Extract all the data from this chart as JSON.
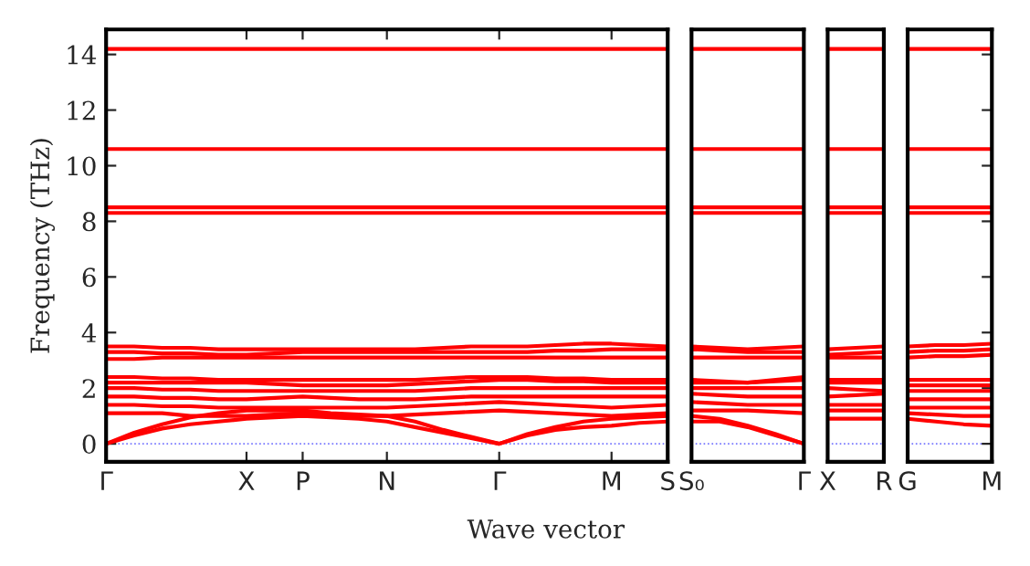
{
  "chart_data": [
    {
      "type": "line",
      "ylabel": "Frequency (THz)",
      "xlabel": "Wave vector",
      "categories": [
        "Γ",
        null,
        null,
        null,
        null,
        "X",
        null,
        "P",
        null,
        null,
        "N",
        null,
        null,
        null,
        "Γ",
        null,
        null,
        null,
        "M",
        null,
        "S"
      ],
      "ylim": [
        -0.65,
        14.9
      ],
      "yticks": [
        0,
        2,
        4,
        6,
        8,
        10,
        12,
        14
      ],
      "marker": "none",
      "line_style": "solid",
      "grid": false,
      "legend": false,
      "ref_lines": [
        {
          "axis": "y",
          "value": 0,
          "color": "#7777ff",
          "line_style": "dotted"
        }
      ],
      "series": [
        {
          "color": "#ff0000",
          "values": [
            0,
            0.3,
            0.55,
            0.7,
            0.8,
            0.9,
            0.95,
            1.0,
            0.95,
            0.9,
            0.8,
            0.6,
            0.4,
            0.2,
            0,
            0.3,
            0.5,
            0.6,
            0.65,
            0.75,
            0.8
          ]
        },
        {
          "color": "#ff0000",
          "values": [
            0,
            0.4,
            0.7,
            0.95,
            1.1,
            1.2,
            1.2,
            1.2,
            1.1,
            1.05,
            1.0,
            0.8,
            0.5,
            0.25,
            0,
            0.35,
            0.6,
            0.8,
            0.9,
            0.95,
            1.0
          ]
        },
        {
          "color": "#ff0000",
          "values": [
            1.1,
            1.1,
            1.1,
            1.0,
            1.0,
            1.0,
            1.05,
            1.1,
            1.05,
            1.0,
            1.0,
            1.05,
            1.1,
            1.15,
            1.2,
            1.15,
            1.1,
            1.05,
            1.0,
            1.05,
            1.1
          ]
        },
        {
          "color": "#ff0000",
          "values": [
            1.4,
            1.4,
            1.35,
            1.35,
            1.3,
            1.3,
            1.3,
            1.3,
            1.3,
            1.3,
            1.3,
            1.35,
            1.4,
            1.45,
            1.5,
            1.45,
            1.4,
            1.35,
            1.3,
            1.35,
            1.4
          ]
        },
        {
          "color": "#ff0000",
          "values": [
            1.7,
            1.7,
            1.65,
            1.65,
            1.6,
            1.6,
            1.65,
            1.7,
            1.65,
            1.6,
            1.6,
            1.6,
            1.65,
            1.7,
            1.7,
            1.7,
            1.7,
            1.7,
            1.7,
            1.7,
            1.7
          ]
        },
        {
          "color": "#ff0000",
          "values": [
            2.0,
            2.0,
            1.95,
            1.95,
            1.9,
            1.9,
            1.9,
            1.9,
            1.9,
            1.9,
            1.9,
            1.9,
            1.95,
            2.0,
            2.0,
            2.0,
            2.0,
            2.0,
            2.0,
            2.0,
            2.0
          ]
        },
        {
          "color": "#ff0000",
          "values": [
            2.2,
            2.2,
            2.2,
            2.2,
            2.2,
            2.2,
            2.15,
            2.1,
            2.1,
            2.1,
            2.1,
            2.15,
            2.2,
            2.25,
            2.3,
            2.3,
            2.25,
            2.25,
            2.2,
            2.2,
            2.2
          ]
        },
        {
          "color": "#ff0000",
          "values": [
            2.4,
            2.4,
            2.35,
            2.35,
            2.3,
            2.3,
            2.3,
            2.3,
            2.3,
            2.3,
            2.3,
            2.3,
            2.35,
            2.4,
            2.4,
            2.4,
            2.35,
            2.35,
            2.3,
            2.3,
            2.3
          ]
        },
        {
          "color": "#ff0000",
          "values": [
            3.05,
            3.05,
            3.1,
            3.1,
            3.1,
            3.1,
            3.1,
            3.1,
            3.1,
            3.1,
            3.1,
            3.1,
            3.1,
            3.1,
            3.1,
            3.1,
            3.1,
            3.1,
            3.1,
            3.1,
            3.1
          ]
        },
        {
          "color": "#ff0000",
          "values": [
            3.3,
            3.3,
            3.25,
            3.25,
            3.2,
            3.2,
            3.25,
            3.3,
            3.3,
            3.3,
            3.3,
            3.3,
            3.3,
            3.3,
            3.3,
            3.3,
            3.35,
            3.35,
            3.4,
            3.4,
            3.4
          ]
        },
        {
          "color": "#ff0000",
          "values": [
            3.5,
            3.5,
            3.45,
            3.45,
            3.4,
            3.4,
            3.4,
            3.4,
            3.4,
            3.4,
            3.4,
            3.4,
            3.45,
            3.5,
            3.5,
            3.5,
            3.55,
            3.6,
            3.6,
            3.55,
            3.5
          ]
        },
        {
          "color": "#ff0000",
          "values": [
            8.3,
            8.3,
            8.3,
            8.3,
            8.3,
            8.3,
            8.3,
            8.3,
            8.3,
            8.3,
            8.3,
            8.3,
            8.3,
            8.3,
            8.3,
            8.3,
            8.3,
            8.3,
            8.3,
            8.3,
            8.3
          ]
        },
        {
          "color": "#ff0000",
          "values": [
            8.5,
            8.5,
            8.5,
            8.5,
            8.5,
            8.5,
            8.5,
            8.5,
            8.5,
            8.5,
            8.5,
            8.5,
            8.5,
            8.5,
            8.5,
            8.5,
            8.5,
            8.5,
            8.5,
            8.5,
            8.5
          ]
        },
        {
          "color": "#ff0000",
          "values": [
            10.6,
            10.6,
            10.6,
            10.6,
            10.6,
            10.6,
            10.6,
            10.6,
            10.6,
            10.6,
            10.6,
            10.6,
            10.6,
            10.6,
            10.6,
            10.6,
            10.6,
            10.6,
            10.6,
            10.6,
            10.6
          ]
        },
        {
          "color": "#ff0000",
          "values": [
            14.2,
            14.2,
            14.2,
            14.2,
            14.2,
            14.2,
            14.2,
            14.2,
            14.2,
            14.2,
            14.2,
            14.2,
            14.2,
            14.2,
            14.2,
            14.2,
            14.2,
            14.2,
            14.2,
            14.2,
            14.2
          ]
        }
      ]
    },
    {
      "type": "line",
      "categories": [
        "S₀",
        null,
        null,
        null,
        "Γ"
      ],
      "tick_labels": "x",
      "ylim": [
        -0.65,
        14.9
      ],
      "yticks": [
        0,
        2,
        4,
        6,
        8,
        10,
        12,
        14
      ],
      "marker": "none",
      "line_style": "solid",
      "ref_lines": [
        {
          "axis": "y",
          "value": 0,
          "color": "#7777ff",
          "line_style": "dotted"
        }
      ],
      "series": [
        {
          "color": "#ff0000",
          "values": [
            0.8,
            0.8,
            0.6,
            0.3,
            0
          ]
        },
        {
          "color": "#ff0000",
          "values": [
            1.0,
            0.9,
            0.65,
            0.35,
            0
          ]
        },
        {
          "color": "#ff0000",
          "values": [
            1.2,
            1.2,
            1.2,
            1.15,
            1.1
          ]
        },
        {
          "color": "#ff0000",
          "values": [
            1.5,
            1.45,
            1.4,
            1.4,
            1.4
          ]
        },
        {
          "color": "#ff0000",
          "values": [
            1.8,
            1.75,
            1.7,
            1.7,
            1.7
          ]
        },
        {
          "color": "#ff0000",
          "values": [
            2.0,
            2.0,
            2.0,
            2.0,
            2.0
          ]
        },
        {
          "color": "#ff0000",
          "values": [
            2.2,
            2.2,
            2.2,
            2.25,
            2.3
          ]
        },
        {
          "color": "#ff0000",
          "values": [
            2.3,
            2.25,
            2.2,
            2.3,
            2.4
          ]
        },
        {
          "color": "#ff0000",
          "values": [
            3.1,
            3.1,
            3.1,
            3.1,
            3.1
          ]
        },
        {
          "color": "#ff0000",
          "values": [
            3.4,
            3.35,
            3.3,
            3.3,
            3.3
          ]
        },
        {
          "color": "#ff0000",
          "values": [
            3.5,
            3.45,
            3.4,
            3.45,
            3.5
          ]
        },
        {
          "color": "#ff0000",
          "values": [
            8.3,
            8.3,
            8.3,
            8.3,
            8.3
          ]
        },
        {
          "color": "#ff0000",
          "values": [
            8.5,
            8.5,
            8.5,
            8.5,
            8.5
          ]
        },
        {
          "color": "#ff0000",
          "values": [
            10.6,
            10.6,
            10.6,
            10.6,
            10.6
          ]
        },
        {
          "color": "#ff0000",
          "values": [
            14.2,
            14.2,
            14.2,
            14.2,
            14.2
          ]
        }
      ]
    },
    {
      "type": "line",
      "categories": [
        "X",
        null,
        "R"
      ],
      "tick_labels": "x",
      "ylim": [
        -0.65,
        14.9
      ],
      "yticks": [
        0,
        2,
        4,
        6,
        8,
        10,
        12,
        14
      ],
      "marker": "none",
      "line_style": "solid",
      "ref_lines": [
        {
          "axis": "y",
          "value": 0,
          "color": "#7777ff",
          "line_style": "dotted"
        }
      ],
      "series": [
        {
          "color": "#ff0000",
          "values": [
            0.9,
            0.9,
            0.9
          ]
        },
        {
          "color": "#ff0000",
          "values": [
            1.2,
            1.2,
            1.2
          ]
        },
        {
          "color": "#ff0000",
          "values": [
            1.4,
            1.4,
            1.4
          ]
        },
        {
          "color": "#ff0000",
          "values": [
            1.7,
            1.75,
            1.8
          ]
        },
        {
          "color": "#ff0000",
          "values": [
            2.0,
            1.95,
            1.9
          ]
        },
        {
          "color": "#ff0000",
          "values": [
            2.2,
            2.2,
            2.2
          ]
        },
        {
          "color": "#ff0000",
          "values": [
            2.3,
            2.3,
            2.3
          ]
        },
        {
          "color": "#ff0000",
          "values": [
            3.1,
            3.1,
            3.1
          ]
        },
        {
          "color": "#ff0000",
          "values": [
            3.2,
            3.25,
            3.3
          ]
        },
        {
          "color": "#ff0000",
          "values": [
            3.4,
            3.45,
            3.5
          ]
        },
        {
          "color": "#ff0000",
          "values": [
            8.3,
            8.3,
            8.3
          ]
        },
        {
          "color": "#ff0000",
          "values": [
            8.5,
            8.5,
            8.5
          ]
        },
        {
          "color": "#ff0000",
          "values": [
            10.6,
            10.6,
            10.6
          ]
        },
        {
          "color": "#ff0000",
          "values": [
            14.2,
            14.2,
            14.2
          ]
        }
      ]
    },
    {
      "type": "line",
      "categories": [
        "G",
        null,
        null,
        "M"
      ],
      "tick_labels": "x",
      "ylim": [
        -0.65,
        14.9
      ],
      "yticks": [
        0,
        2,
        4,
        6,
        8,
        10,
        12,
        14
      ],
      "marker": "none",
      "line_style": "solid",
      "ref_lines": [
        {
          "axis": "y",
          "value": 0,
          "color": "#7777ff",
          "line_style": "dotted"
        }
      ],
      "series": [
        {
          "color": "#ff0000",
          "values": [
            0.9,
            0.8,
            0.7,
            0.65
          ]
        },
        {
          "color": "#ff0000",
          "values": [
            1.1,
            1.05,
            1.0,
            1.0
          ]
        },
        {
          "color": "#ff0000",
          "values": [
            1.3,
            1.3,
            1.3,
            1.3
          ]
        },
        {
          "color": "#ff0000",
          "values": [
            1.6,
            1.6,
            1.6,
            1.6
          ]
        },
        {
          "color": "#ff0000",
          "values": [
            1.9,
            1.9,
            1.9,
            1.9
          ]
        },
        {
          "color": "#ff0000",
          "values": [
            2.1,
            2.1,
            2.1,
            2.1
          ]
        },
        {
          "color": "#ff0000",
          "values": [
            2.3,
            2.3,
            2.3,
            2.3
          ]
        },
        {
          "color": "#ff0000",
          "values": [
            3.1,
            3.15,
            3.15,
            3.2
          ]
        },
        {
          "color": "#ff0000",
          "values": [
            3.3,
            3.35,
            3.35,
            3.4
          ]
        },
        {
          "color": "#ff0000",
          "values": [
            3.5,
            3.55,
            3.55,
            3.6
          ]
        },
        {
          "color": "#ff0000",
          "values": [
            8.3,
            8.3,
            8.3,
            8.3
          ]
        },
        {
          "color": "#ff0000",
          "values": [
            8.5,
            8.5,
            8.5,
            8.5
          ]
        },
        {
          "color": "#ff0000",
          "values": [
            10.6,
            10.6,
            10.6,
            10.6
          ]
        },
        {
          "color": "#ff0000",
          "values": [
            14.2,
            14.2,
            14.2,
            14.2
          ]
        }
      ]
    }
  ]
}
